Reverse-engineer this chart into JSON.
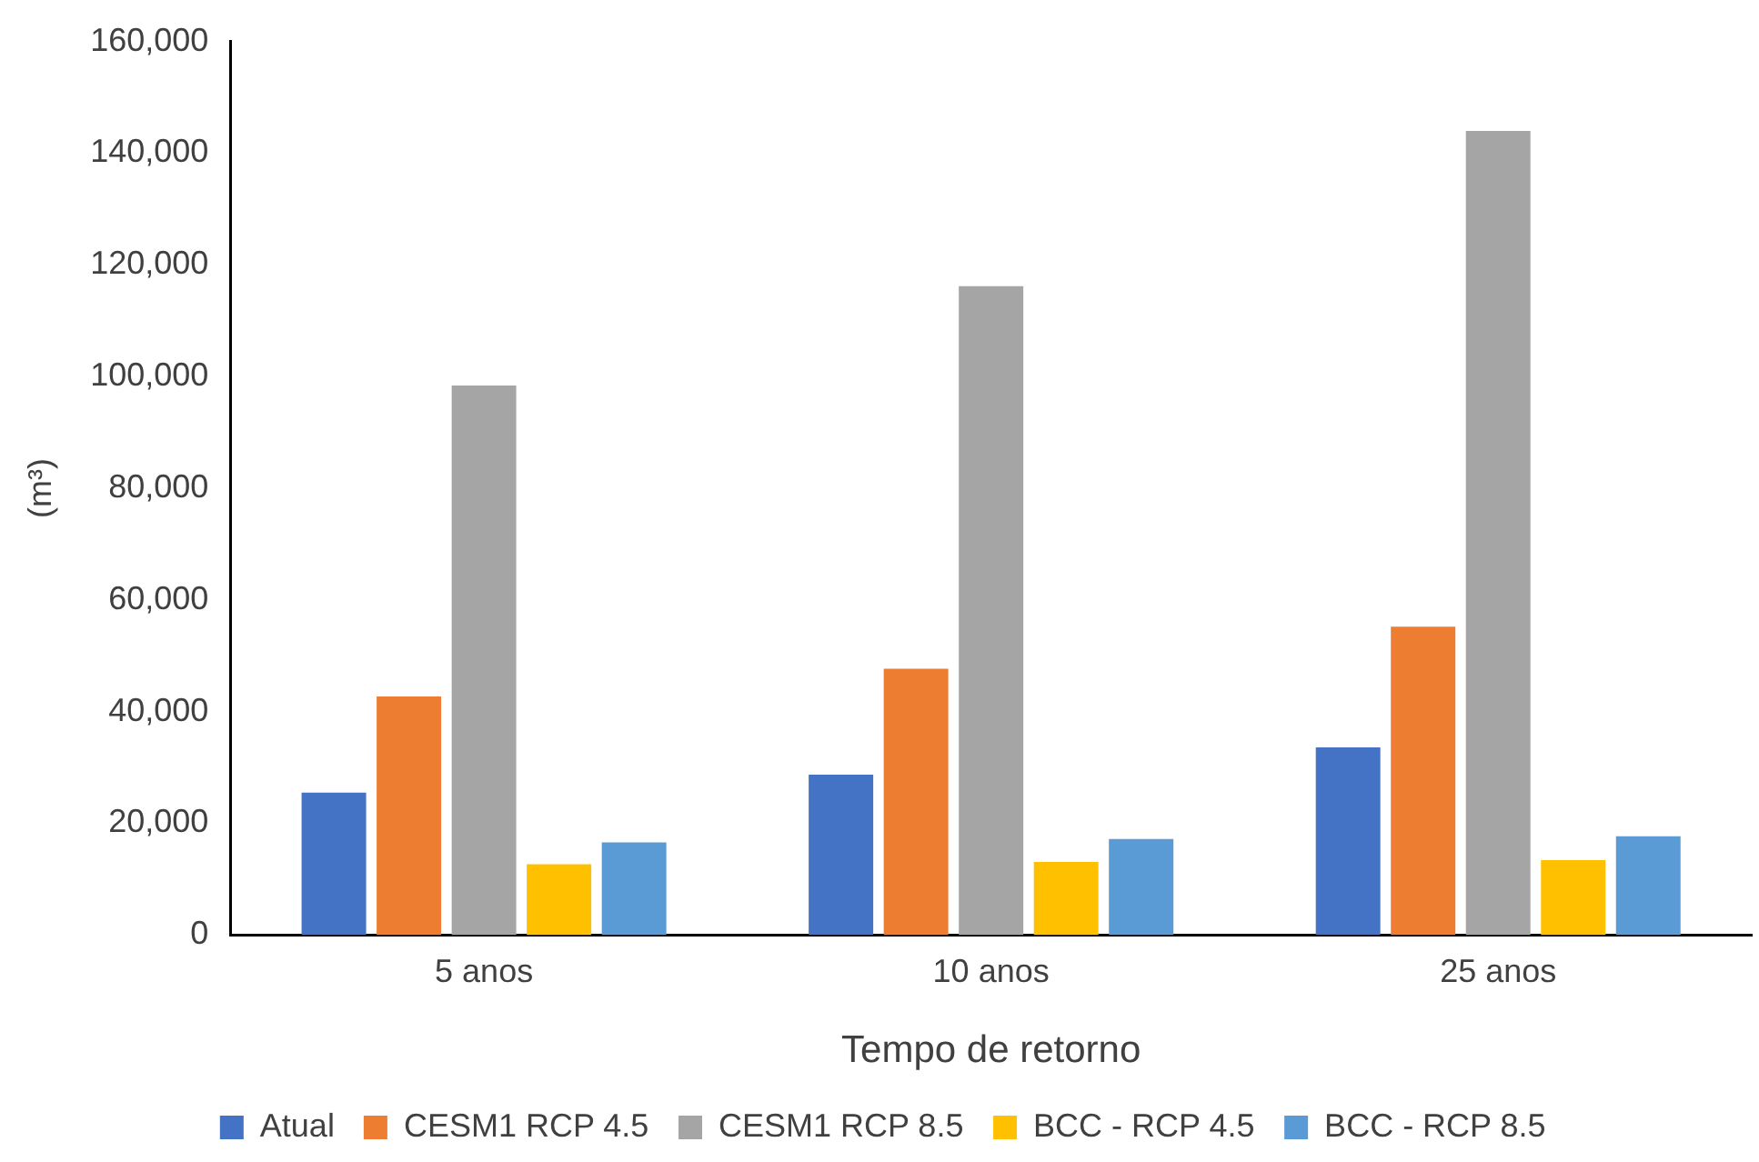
{
  "chart_data": {
    "type": "bar",
    "xlabel": "Tempo de retorno",
    "ylabel": "(m³)",
    "categories": [
      "5 anos",
      "10 anos",
      "25 anos"
    ],
    "series": [
      {
        "name": "Atual",
        "color": "#4472c4",
        "values": [
          25500,
          28700,
          33600
        ]
      },
      {
        "name": "CESM1 RCP 4.5",
        "color": "#ed7d31",
        "values": [
          42700,
          47700,
          55200
        ]
      },
      {
        "name": "CESM1 RCP 8.5",
        "color": "#a5a5a5",
        "values": [
          98400,
          116200,
          144000
        ]
      },
      {
        "name": "BCC - RCP 4.5",
        "color": "#ffc000",
        "values": [
          12700,
          13100,
          13400
        ]
      },
      {
        "name": "BCC - RCP 8.5",
        "color": "#5b9bd5",
        "values": [
          16600,
          17200,
          17700
        ]
      }
    ],
    "ylim": [
      0,
      160000
    ],
    "yticks": [
      0,
      {
        "value": 20000,
        "label": "20,000"
      },
      {
        "value": 40000,
        "label": "40,000"
      },
      {
        "value": 60000,
        "label": "60,000"
      },
      {
        "value": 80000,
        "label": "80,000"
      },
      {
        "value": 100000,
        "label": "100,000"
      },
      {
        "value": 120000,
        "label": "120,000"
      },
      {
        "value": 140000,
        "label": "140,000"
      },
      {
        "value": 160000,
        "label": "160,000"
      }
    ],
    "grid": false,
    "legend": "bottom"
  }
}
